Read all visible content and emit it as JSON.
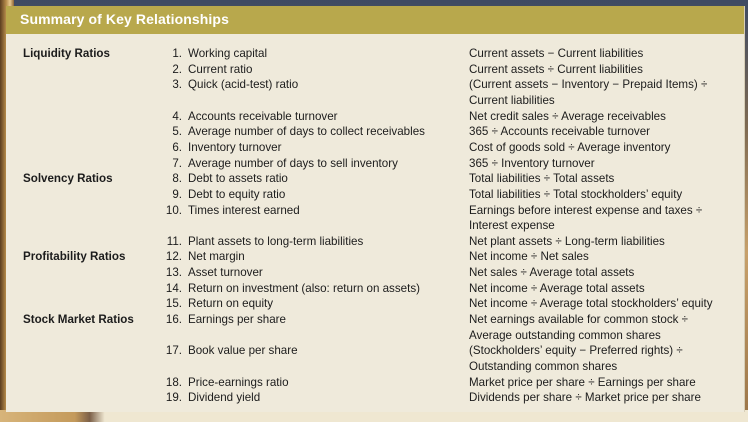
{
  "title": "Summary of Key Relationships",
  "rows": [
    {
      "category": "Liquidity Ratios",
      "num": "1.",
      "name": "Working capital",
      "formula": "Current assets − Current liabilities"
    },
    {
      "category": "",
      "num": "2.",
      "name": "Current ratio",
      "formula": "Current assets ÷ Current liabilities"
    },
    {
      "category": "",
      "num": "3.",
      "name": "Quick (acid-test) ratio",
      "formula": "(Current assets − Inventory − Prepaid Items) ÷"
    },
    {
      "category": "",
      "num": "",
      "name": "",
      "formula": "Current liabilities"
    },
    {
      "category": "",
      "num": "4.",
      "name": "Accounts receivable turnover",
      "formula": "Net credit sales ÷ Average receivables"
    },
    {
      "category": "",
      "num": "5.",
      "name": "Average number of days to collect receivables",
      "formula": "365 ÷ Accounts receivable turnover"
    },
    {
      "category": "",
      "num": "6.",
      "name": "Inventory turnover",
      "formula": "Cost of goods sold ÷ Average inventory"
    },
    {
      "category": "",
      "num": "7.",
      "name": "Average number of days to sell inventory",
      "formula": "365 ÷ Inventory turnover"
    },
    {
      "category": "Solvency Ratios",
      "num": "8.",
      "name": "Debt to assets ratio",
      "formula": "Total liabilities ÷ Total assets"
    },
    {
      "category": "",
      "num": "9.",
      "name": "Debt to equity ratio",
      "formula": "Total liabilities ÷ Total stockholders’ equity"
    },
    {
      "category": "",
      "num": "10.",
      "name": "Times interest earned",
      "formula": "Earnings before interest expense and taxes ÷"
    },
    {
      "category": "",
      "num": "",
      "name": "",
      "formula": "Interest expense"
    },
    {
      "category": "",
      "num": "11.",
      "name": "Plant assets to long-term liabilities",
      "formula": "Net plant assets ÷ Long-term liabilities"
    },
    {
      "category": "Profitability Ratios",
      "num": "12.",
      "name": "Net margin",
      "formula": "Net income ÷ Net sales"
    },
    {
      "category": "",
      "num": "13.",
      "name": "Asset turnover",
      "formula": "Net sales ÷ Average total assets"
    },
    {
      "category": "",
      "num": "14.",
      "name": "Return on investment (also: return on assets)",
      "formula": "Net income ÷ Average total assets"
    },
    {
      "category": "",
      "num": "15.",
      "name": "Return on equity",
      "formula": "Net income ÷ Average total stockholders’ equity"
    },
    {
      "category": "Stock Market Ratios",
      "num": "16.",
      "name": "Earnings per share",
      "formula": "Net earnings available for common stock ÷"
    },
    {
      "category": "",
      "num": "",
      "name": "",
      "formula": "Average outstanding common shares"
    },
    {
      "category": "",
      "num": "17.",
      "name": "Book value per share",
      "formula": "(Stockholders’ equity − Preferred rights) ÷"
    },
    {
      "category": "",
      "num": "",
      "name": "",
      "formula": "Outstanding common shares"
    },
    {
      "category": "",
      "num": "18.",
      "name": "Price-earnings ratio",
      "formula": "Market price per share ÷ Earnings per share"
    },
    {
      "category": "",
      "num": "19.",
      "name": "Dividend yield",
      "formula": "Dividends per share ÷ Market price per share"
    }
  ]
}
